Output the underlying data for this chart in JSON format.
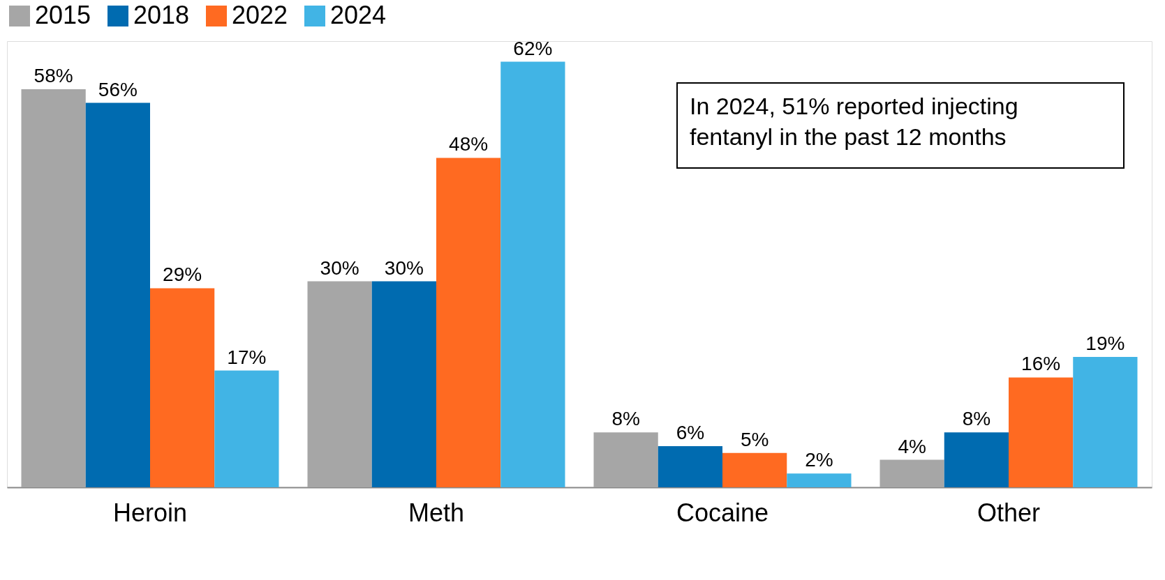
{
  "chart_data": {
    "type": "bar",
    "categories": [
      "Heroin",
      "Meth",
      "Cocaine",
      "Other"
    ],
    "series": [
      {
        "name": "2015",
        "color": "#a6a6a6",
        "values": [
          58,
          30,
          8,
          4
        ],
        "value_labels": [
          "58%",
          "30%",
          "8%",
          "4%"
        ]
      },
      {
        "name": "2018",
        "color": "#006bb0",
        "values": [
          56,
          30,
          6,
          8
        ],
        "value_labels": [
          "56%",
          "30%",
          "6%",
          "8%"
        ]
      },
      {
        "name": "2022",
        "color": "#ff6a21",
        "values": [
          29,
          48,
          5,
          16
        ],
        "value_labels": [
          "29%",
          "48%",
          "5%",
          "16%"
        ]
      },
      {
        "name": "2024",
        "color": "#41b4e5",
        "values": [
          17,
          62,
          2,
          19
        ],
        "value_labels": [
          "17%",
          "62%",
          "2%",
          "19%"
        ]
      }
    ],
    "annotations": [
      "In 2024, 51% reported injecting fentanyl in the past 12 months"
    ],
    "legend": "top",
    "grid": false
  }
}
